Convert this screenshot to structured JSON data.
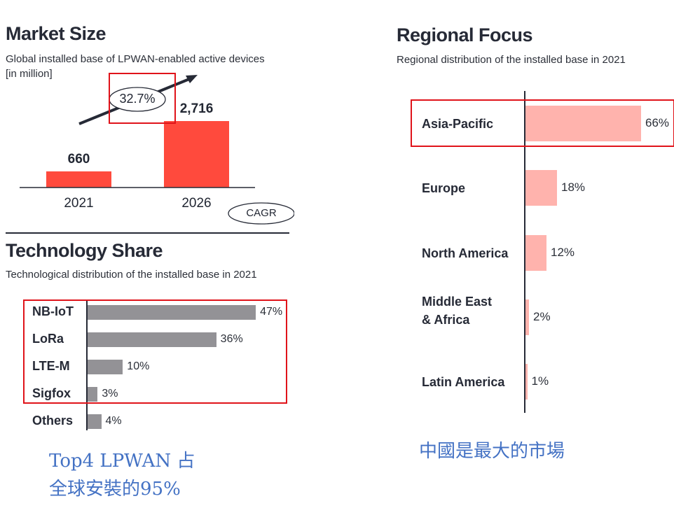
{
  "market_size": {
    "title": "Market Size",
    "subtitle": "Global installed base of LPWAN-enabled active devices",
    "subtitle2": "[in million]",
    "cagr_value": "32.7%",
    "cagr_label": "CAGR"
  },
  "technology_share": {
    "title": "Technology Share",
    "subtitle": "Technological distribution of the installed base in 2021"
  },
  "regional_focus": {
    "title": "Regional Focus",
    "subtitle": "Regional distribution of the installed base in 2021"
  },
  "annotations": {
    "left_line1": "Top4 LPWAN 占",
    "left_line2": "全球安裝的95%",
    "right": "中國是最大的市場"
  },
  "colors": {
    "market_bar": "#ff4a3d",
    "tech_bar": "#939296",
    "region_bar": "#ffb3ad",
    "highlight": "#e0131a",
    "note": "#4472c4"
  },
  "chart_data": [
    {
      "type": "bar",
      "title": "Market Size",
      "categories": [
        "2021",
        "2026"
      ],
      "values": [
        660,
        2716
      ],
      "value_labels": [
        "660",
        "2,716"
      ],
      "ylabel": "million devices"
    },
    {
      "type": "bar",
      "orientation": "horizontal",
      "title": "Technology Share",
      "categories": [
        "NB-IoT",
        "LoRa",
        "LTE-M",
        "Sigfox",
        "Others"
      ],
      "values": [
        47,
        36,
        10,
        3,
        4
      ],
      "value_labels": [
        "47%",
        "36%",
        "10%",
        "3%",
        "4%"
      ]
    },
    {
      "type": "bar",
      "orientation": "horizontal",
      "title": "Regional Focus",
      "categories": [
        "Asia-Pacific",
        "Europe",
        "North America",
        "Middle East\n& Africa",
        "Latin America"
      ],
      "values": [
        66,
        18,
        12,
        2,
        1
      ],
      "value_labels": [
        "66%",
        "18%",
        "12%",
        "2%",
        "1%"
      ]
    }
  ]
}
